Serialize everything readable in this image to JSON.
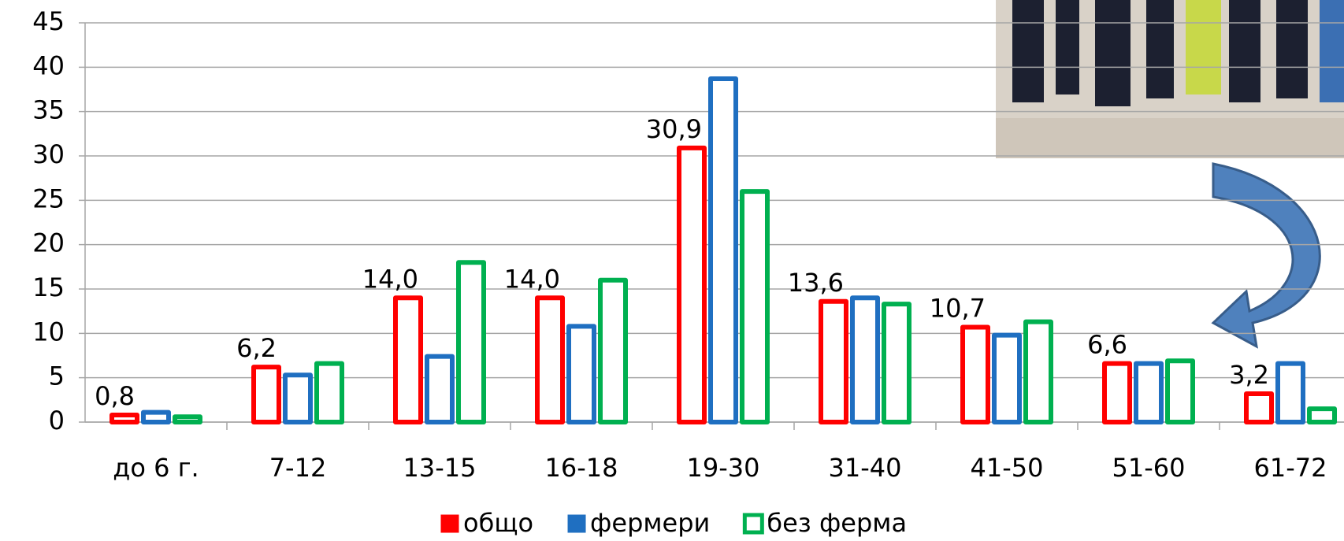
{
  "chart_data": {
    "type": "bar",
    "categories": [
      "до 6 г.",
      "7-12",
      "13-15",
      "16-18",
      "19-30",
      "31-40",
      "41-50",
      "51-60",
      "61-72"
    ],
    "series": [
      {
        "name": "общо",
        "color": "#ff0000",
        "values": [
          0.8,
          6.2,
          14.0,
          14.0,
          30.9,
          13.6,
          10.7,
          6.6,
          3.2
        ],
        "value_labels": [
          "0,8",
          "6,2",
          "14,0",
          "14,0",
          "30,9",
          "13,6",
          "10,7",
          "6,6",
          "3,2"
        ]
      },
      {
        "name": "фермери",
        "color": "#1f6fc1",
        "values": [
          1.1,
          5.3,
          7.4,
          10.8,
          38.7,
          14.0,
          9.8,
          6.6,
          6.6
        ]
      },
      {
        "name": "без ферма",
        "color": "#00b050",
        "values": [
          0.6,
          6.6,
          18.0,
          16.0,
          26.0,
          13.3,
          11.3,
          6.9,
          1.5
        ]
      }
    ],
    "ylim": [
      0,
      45
    ],
    "yticks": [
      0,
      5,
      10,
      15,
      20,
      25,
      30,
      35,
      40,
      45
    ],
    "grid": true
  }
}
